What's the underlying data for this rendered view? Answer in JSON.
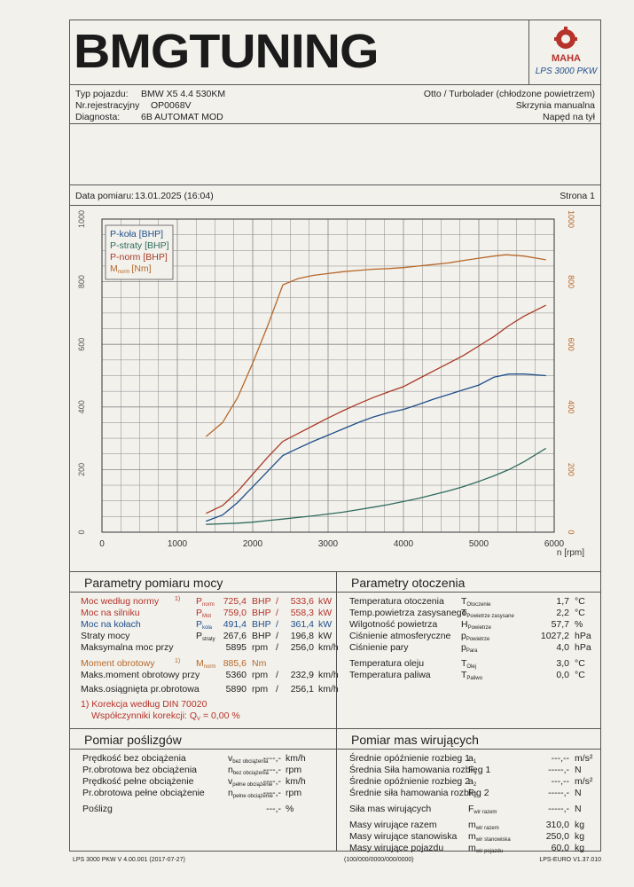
{
  "brand": {
    "logo_text": "BMGTUNING",
    "maha_text": "MAHA",
    "lps_model": "LPS 3000 PKW"
  },
  "vehicle": {
    "type_label": "Typ pojazdu:",
    "type_value": "BMW X5 4.4 530KM",
    "reg_label": "Nr.rejestracyjny",
    "reg_value": "OP0068V",
    "diag_label": "Diagnosta:",
    "diag_value": "6B AUTOMAT MOD",
    "engine": "Otto / Turbolader (chłodzone powietrzem)",
    "gearbox": "Skrzynia manualna",
    "drive": "Napęd na tył"
  },
  "measurement": {
    "date_label": "Data pomiaru:",
    "date_value": "13.01.2025 (16:04)",
    "page": "Strona 1"
  },
  "chart_data": {
    "type": "line",
    "xlabel": "n [rpm]",
    "xlim": [
      0,
      6000
    ],
    "ylim_left": [
      0,
      1000
    ],
    "ylim_right": [
      0,
      1000
    ],
    "x_ticks": [
      "0",
      "1000",
      "2000",
      "3000",
      "4000",
      "5000",
      "6000"
    ],
    "y_ticks": [
      "0",
      "200",
      "400",
      "600",
      "800",
      "1000"
    ],
    "y_right_ticks": [
      "0",
      "200",
      "400",
      "600",
      "800",
      "1000"
    ],
    "grid": true,
    "legend_position": "top-left",
    "series": [
      {
        "name": "P-koła [BHP]",
        "color": "#1f4f8a",
        "x": [
          1380,
          1600,
          1800,
          2000,
          2200,
          2400,
          2600,
          2800,
          3000,
          3200,
          3400,
          3600,
          3800,
          4000,
          4200,
          4400,
          4600,
          4800,
          5000,
          5200,
          5400,
          5600,
          5890
        ],
        "y": [
          35,
          55,
          95,
          145,
          195,
          245,
          268,
          290,
          310,
          330,
          350,
          368,
          382,
          392,
          408,
          425,
          440,
          455,
          470,
          495,
          505,
          505,
          500
        ]
      },
      {
        "name": "P-straty [BHP]",
        "color": "#2f6b5e",
        "x": [
          1380,
          1600,
          1800,
          2000,
          2200,
          2400,
          2600,
          2800,
          3000,
          3200,
          3400,
          3600,
          3800,
          4000,
          4200,
          4400,
          4600,
          4800,
          5000,
          5200,
          5400,
          5600,
          5890
        ],
        "y": [
          25,
          27,
          29,
          32,
          37,
          42,
          47,
          52,
          58,
          64,
          72,
          80,
          88,
          98,
          108,
          120,
          132,
          146,
          162,
          180,
          200,
          225,
          268
        ]
      },
      {
        "name": "P-norm [BHP]",
        "color": "#a93a26",
        "x": [
          1380,
          1600,
          1800,
          2000,
          2200,
          2400,
          2600,
          2800,
          3000,
          3200,
          3400,
          3600,
          3800,
          4000,
          4200,
          4400,
          4600,
          4800,
          5000,
          5200,
          5400,
          5600,
          5890
        ],
        "y": [
          60,
          85,
          130,
          185,
          240,
          290,
          315,
          340,
          365,
          388,
          410,
          430,
          448,
          465,
          490,
          515,
          540,
          565,
          595,
          625,
          660,
          690,
          725
        ]
      },
      {
        "name": "M",
        "name_sub": "norm",
        "name_unit": "[Nm]",
        "color": "#b7682a",
        "axis": "right",
        "x": [
          1380,
          1600,
          1800,
          2000,
          2200,
          2400,
          2600,
          2800,
          3000,
          3200,
          3400,
          3600,
          3800,
          4000,
          4200,
          4400,
          4600,
          4800,
          5000,
          5200,
          5360,
          5600,
          5890
        ],
        "y": [
          305,
          350,
          430,
          540,
          660,
          790,
          810,
          820,
          826,
          832,
          836,
          840,
          842,
          845,
          850,
          855,
          860,
          868,
          875,
          882,
          886,
          882,
          870
        ]
      }
    ]
  },
  "power": {
    "title": "Parametry pomiaru mocy",
    "rows": [
      {
        "label": "Moc według normy",
        "sup": "1)",
        "sym": "P",
        "sub": "norm",
        "v1": "725,4",
        "u1": "BHP",
        "v2": "533,6",
        "u2": "kW"
      },
      {
        "label": "Moc na silniku",
        "sup": "",
        "sym": "P",
        "sub": "Mot",
        "v1": "759,0",
        "u1": "BHP",
        "v2": "558,3",
        "u2": "kW"
      },
      {
        "label": "Moc na kołach",
        "sup": "",
        "sym": "P",
        "sub": "koła",
        "v1": "491,4",
        "u1": "BHP",
        "v2": "361,4",
        "u2": "kW"
      },
      {
        "label": "Straty mocy",
        "sup": "",
        "sym": "P",
        "sub": "straty",
        "v1": "267,6",
        "u1": "BHP",
        "v2": "196,8",
        "u2": "kW"
      },
      {
        "label": "Maksymalna moc przy",
        "sup": "",
        "sym": "",
        "sub": "",
        "v1": "5895",
        "u1": "rpm",
        "v2": "256,0",
        "u2": "km/h"
      },
      {
        "label": "Moment obrotowy",
        "sup": "1)",
        "sym": "M",
        "sub": "norm",
        "v1": "885,6",
        "u1": "Nm",
        "v2": "",
        "u2": ""
      },
      {
        "label": "Maks.moment obrotowy przy",
        "sup": "",
        "sym": "",
        "sub": "",
        "v1": "5360",
        "u1": "rpm",
        "v2": "232,9",
        "u2": "km/h"
      },
      {
        "label": "Maks.osiągnięta pr.obrotowa",
        "sup": "",
        "sym": "",
        "sub": "",
        "v1": "5890",
        "u1": "rpm",
        "v2": "256,1",
        "u2": "km/h"
      }
    ],
    "slash": "/",
    "note1": "1) Korekcja według DIN 70020",
    "note2_label": "Współczynniki korekcji: Q",
    "note2_sub": "V",
    "note2_value": "= 0,00 %"
  },
  "ambient": {
    "title": "Parametry otoczenia",
    "rows": [
      {
        "label": "Temperatura otoczenia",
        "sym": "T",
        "sub": "Otoczenie",
        "val": "1,7",
        "unit": "°C"
      },
      {
        "label": "Temp.powietrza zasysanego",
        "sym": "T",
        "sub": "Powietrze zasysane",
        "val": "2,2",
        "unit": "°C"
      },
      {
        "label": "Wilgotność powietrza",
        "sym": "H",
        "sub": "Powietrze",
        "val": "57,7",
        "unit": "%"
      },
      {
        "label": "Ciśnienie atmosferyczne",
        "sym": "p",
        "sub": "Powietrze",
        "val": "1027,2",
        "unit": "hPa"
      },
      {
        "label": "Ciśnienie pary",
        "sym": "p",
        "sub": "Para",
        "val": "4,0",
        "unit": "hPa"
      },
      {
        "label": "Temperatura oleju",
        "sym": "T",
        "sub": "Olej",
        "val": "3,0",
        "unit": "°C"
      },
      {
        "label": "Temperatura paliwa",
        "sym": "T",
        "sub": "Paliwo",
        "val": "0,0",
        "unit": "°C"
      }
    ]
  },
  "slip": {
    "title": "Pomiar poślizgów",
    "rows": [
      {
        "label": "Prędkość bez obciążenia",
        "sym": "v",
        "sub": "bez obciążenia",
        "val": "----,-",
        "unit": "km/h"
      },
      {
        "label": "Pr.obrotowa bez obciążenia",
        "sym": "n",
        "sub": "bez obciążenia",
        "val": "----,-",
        "unit": "rpm"
      },
      {
        "label": "Prędkość pełne obciążenie",
        "sym": "v",
        "sub": "pełne obciążenie",
        "val": "----,-",
        "unit": "km/h"
      },
      {
        "label": "Pr.obrotowa pełne obciążenie",
        "sym": "n",
        "sub": "pełne obciążenie",
        "val": "----,-",
        "unit": "rpm"
      },
      {
        "label": "Poślizg",
        "sym": "",
        "sub": "",
        "val": "---,-",
        "unit": "%"
      }
    ]
  },
  "inertia": {
    "title": "Pomiar mas wirujących",
    "rows": [
      {
        "label": "Średnie opóźnienie rozbieg 1",
        "sym": "a",
        "sub": "1",
        "val": "---,--",
        "unit": "m/s²"
      },
      {
        "label": "Średnia Siła hamowania rozbieg 1",
        "sym": "F",
        "sub": "1",
        "val": "-----,-",
        "unit": "N"
      },
      {
        "label": "Średnie opóźnienie rozbieg 2",
        "sym": "a",
        "sub": "2",
        "val": "---,--",
        "unit": "m/s²"
      },
      {
        "label": "Średnie siła hamowania rozbieg 2",
        "sym": "F",
        "sub": "2",
        "val": "-----,-",
        "unit": "N"
      },
      {
        "label": "Siła mas wirujących",
        "sym": "F",
        "sub": "wir razem",
        "val": "-----,-",
        "unit": "N"
      },
      {
        "label": "Masy wirujące razem",
        "sym": "m",
        "sub": "wir razem",
        "val": "310,0",
        "unit": "kg"
      },
      {
        "label": "Masy wirujące stanowiska",
        "sym": "m",
        "sub": "wir stanowiska",
        "val": "250,0",
        "unit": "kg"
      },
      {
        "label": "Masy wirujące pojazdu",
        "sym": "m",
        "sub": "wir pojazdu",
        "val": "60,0",
        "unit": "kg"
      }
    ]
  },
  "footer": {
    "left": "LPS 3000 PKW V 4.00.001 (2017-07-27)",
    "center": "(100/000/0000/000/0000)",
    "right": "LPS-EURO V1.37.010"
  }
}
